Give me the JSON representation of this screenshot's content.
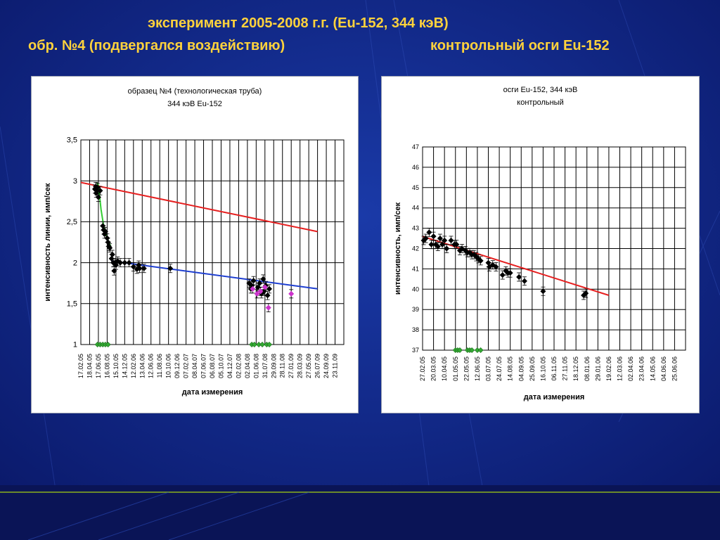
{
  "slide": {
    "title_line1": "эксперимент 2005-2008 г.г. (Eu-152, 344 кэВ)",
    "title_line2_left": "обр. №4 (подвергался воздействию)",
    "title_line2_right": "контрольный осги Eu-152",
    "background_color": "#0a1a6e",
    "title_color": "#ffd23c"
  },
  "chart_data": [
    {
      "type": "scatter",
      "title_lines": [
        "образец №4 (технологическая труба)",
        "344 кэВ Eu-152"
      ],
      "xlabel": "дата измерения",
      "ylabel": "интенсивность линии, имп/сек",
      "xticks": [
        "17.02.05",
        "18.04.05",
        "17.06.05",
        "16.08.05",
        "15.10.05",
        "14.12.05",
        "12.02.06",
        "13.04.06",
        "12.06.06",
        "11.08.06",
        "10.10.06",
        "09.12.06",
        "07.02.07",
        "08.04.07",
        "07.06.07",
        "06.08.07",
        "05.10.07",
        "04.12.07",
        "02.02.08",
        "02.04.08",
        "01.06.08",
        "31.07.08",
        "29.09.08",
        "28.11.08",
        "27.01.09",
        "28.03.09",
        "27.05.09",
        "26.07.09",
        "24.09.09",
        "23.11.09"
      ],
      "ylim": [
        1,
        3.5
      ],
      "yticks": [
        "1",
        "1,5",
        "2",
        "2,5",
        "3",
        "3,5"
      ],
      "yticks_values": [
        1,
        1.5,
        2,
        2.5,
        3,
        3.5
      ],
      "grid": true,
      "series": [
        {
          "marker": "diamond",
          "color": "#000000",
          "points": [
            [
              1.6,
              2.9
            ],
            [
              1.7,
              2.93
            ],
            [
              1.75,
              2.85
            ],
            [
              1.8,
              2.88
            ],
            [
              1.9,
              2.92
            ],
            [
              2.0,
              2.8
            ],
            [
              2.2,
              2.88
            ],
            [
              2.5,
              2.45
            ],
            [
              2.6,
              2.4
            ],
            [
              2.7,
              2.35
            ],
            [
              2.8,
              2.38
            ],
            [
              3.0,
              2.3
            ],
            [
              3.1,
              2.25
            ],
            [
              3.2,
              2.2
            ],
            [
              3.3,
              2.18
            ],
            [
              3.5,
              2.05
            ],
            [
              3.6,
              2.1
            ],
            [
              3.7,
              2.0
            ],
            [
              3.8,
              1.9
            ],
            [
              3.9,
              2.0
            ],
            [
              4.0,
              1.97
            ],
            [
              4.2,
              2.02
            ],
            [
              4.5,
              2.0
            ],
            [
              5.0,
              2.0
            ],
            [
              5.5,
              2.0
            ],
            [
              6.0,
              1.95
            ],
            [
              6.4,
              1.92
            ],
            [
              6.6,
              1.97
            ],
            [
              6.7,
              1.93
            ],
            [
              7.2,
              1.93
            ],
            [
              10.2,
              1.93
            ],
            [
              19.2,
              1.75
            ],
            [
              19.4,
              1.68
            ],
            [
              19.5,
              1.72
            ],
            [
              19.7,
              1.78
            ],
            [
              20.2,
              1.7
            ],
            [
              20.4,
              1.75
            ],
            [
              20.6,
              1.62
            ],
            [
              20.8,
              1.8
            ],
            [
              20.9,
              1.65
            ],
            [
              21.1,
              1.72
            ],
            [
              21.3,
              1.6
            ],
            [
              21.5,
              1.68
            ]
          ]
        },
        {
          "marker": "diamond",
          "color": "#cc33cc",
          "points": [
            [
              19.6,
              1.68
            ],
            [
              20.1,
              1.62
            ],
            [
              20.5,
              1.65
            ],
            [
              21.0,
              1.7
            ],
            [
              21.4,
              1.45
            ],
            [
              24.0,
              1.62
            ]
          ]
        },
        {
          "marker": "diamond",
          "color": "#33aa33",
          "points": [
            [
              1.9,
              1.0
            ],
            [
              2.2,
              1.0
            ],
            [
              2.5,
              1.0
            ],
            [
              2.8,
              1.0
            ],
            [
              3.1,
              1.0
            ],
            [
              19.5,
              1.0
            ],
            [
              19.8,
              1.0
            ],
            [
              20.3,
              1.0
            ],
            [
              20.7,
              1.0
            ],
            [
              21.2,
              1.0
            ],
            [
              21.5,
              1.0
            ]
          ]
        }
      ],
      "lines": [
        {
          "color": "#33cc33",
          "points": [
            [
              1.8,
              2.98
            ],
            [
              2.0,
              2.95
            ],
            [
              2.3,
              2.65
            ],
            [
              2.6,
              2.45
            ],
            [
              3.0,
              2.3
            ],
            [
              3.4,
              2.2
            ]
          ]
        },
        {
          "color": "#e62020",
          "points": [
            [
              0,
              2.98
            ],
            [
              27,
              2.38
            ]
          ]
        },
        {
          "color": "#1f3fd0",
          "points": [
            [
              3.5,
              2.02
            ],
            [
              27,
              1.68
            ]
          ]
        }
      ]
    },
    {
      "type": "scatter",
      "title_lines": [
        "осги Eu-152, 344 кэВ",
        "контрольный"
      ],
      "xlabel": "дата измерения",
      "ylabel": "интенсивность, имп/сек",
      "xticks": [
        "27.02.05",
        "20.03.05",
        "10.04.05",
        "01.05.05",
        "22.05.05",
        "12.06.05",
        "03.07.05",
        "24.07.05",
        "14.08.05",
        "04.09.05",
        "25.09.05",
        "16.10.05",
        "06.11.05",
        "27.11.05",
        "18.12.05",
        "08.01.06",
        "29.01.06",
        "19.02.06",
        "12.03.06",
        "02.04.06",
        "23.04.06",
        "14.05.06",
        "04.06.06",
        "25.06.06"
      ],
      "ylim": [
        37,
        47
      ],
      "yticks": [
        "37",
        "38",
        "39",
        "40",
        "41",
        "42",
        "43",
        "44",
        "45",
        "46",
        "47"
      ],
      "yticks_values": [
        37,
        38,
        39,
        40,
        41,
        42,
        43,
        44,
        45,
        46,
        47
      ],
      "grid": true,
      "series": [
        {
          "marker": "diamond",
          "color": "#000000",
          "points": [
            [
              0.1,
              42.4
            ],
            [
              0.3,
              42.5
            ],
            [
              0.6,
              42.8
            ],
            [
              0.8,
              42.2
            ],
            [
              1.0,
              42.6
            ],
            [
              1.2,
              42.2
            ],
            [
              1.4,
              42.1
            ],
            [
              1.6,
              42.5
            ],
            [
              1.8,
              42.2
            ],
            [
              2.0,
              42.4
            ],
            [
              2.2,
              42.0
            ],
            [
              2.6,
              42.4
            ],
            [
              2.9,
              42.2
            ],
            [
              3.1,
              42.2
            ],
            [
              3.4,
              41.9
            ],
            [
              3.6,
              42.0
            ],
            [
              3.9,
              41.9
            ],
            [
              4.1,
              41.8
            ],
            [
              4.3,
              41.8
            ],
            [
              4.5,
              41.7
            ],
            [
              4.7,
              41.7
            ],
            [
              4.9,
              41.6
            ],
            [
              5.1,
              41.5
            ],
            [
              5.3,
              41.4
            ],
            [
              6.0,
              41.3
            ],
            [
              6.1,
              41.1
            ],
            [
              6.4,
              41.2
            ],
            [
              6.7,
              41.1
            ],
            [
              7.3,
              40.7
            ],
            [
              7.6,
              40.9
            ],
            [
              7.8,
              40.8
            ],
            [
              8.0,
              40.8
            ],
            [
              8.8,
              40.6
            ],
            [
              9.3,
              40.4
            ],
            [
              11.0,
              39.9
            ],
            [
              14.7,
              39.7
            ],
            [
              14.9,
              39.8
            ]
          ]
        },
        {
          "marker": "diamond",
          "color": "#33aa33",
          "points": [
            [
              3.0,
              37.0
            ],
            [
              3.2,
              37.0
            ],
            [
              3.4,
              37.0
            ],
            [
              4.1,
              37.0
            ],
            [
              4.3,
              37.0
            ],
            [
              4.5,
              37.0
            ],
            [
              5.0,
              37.0
            ],
            [
              5.3,
              37.0
            ]
          ]
        }
      ],
      "lines": [
        {
          "color": "#e62020",
          "points": [
            [
              0,
              42.6
            ],
            [
              17.0,
              39.7
            ]
          ]
        }
      ]
    }
  ]
}
